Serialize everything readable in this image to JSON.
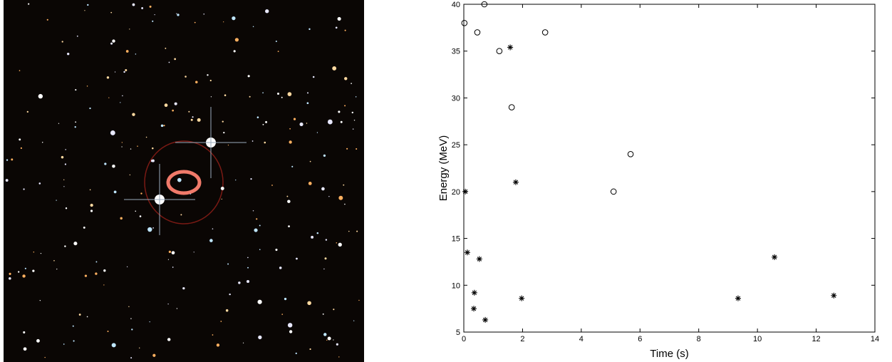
{
  "chart_data": {
    "type": "scatter",
    "xlabel": "Time (s)",
    "ylabel": "Energy (MeV)",
    "xlim": [
      0,
      14
    ],
    "ylim": [
      5,
      40
    ],
    "xticks": [
      0,
      2,
      4,
      6,
      8,
      10,
      12,
      14
    ],
    "yticks": [
      5,
      10,
      15,
      20,
      25,
      30,
      35,
      40
    ],
    "series": [
      {
        "marker": "o",
        "color": "#000000",
        "x": [
          0.02,
          0.46,
          0.7,
          1.21,
          1.63,
          2.77,
          5.1,
          5.68
        ],
        "values": [
          38,
          37,
          40,
          35,
          29,
          37,
          20,
          24
        ]
      },
      {
        "marker": "*",
        "color": "#000000",
        "x": [
          1.58,
          1.77,
          0.05,
          0.12,
          0.53,
          0.36,
          0.34,
          0.73,
          1.97,
          9.34,
          10.58,
          12.6
        ],
        "values": [
          35.4,
          21,
          20,
          13.5,
          12.8,
          9.2,
          7.5,
          6.3,
          8.6,
          8.6,
          13,
          8.9
        ]
      }
    ]
  }
}
